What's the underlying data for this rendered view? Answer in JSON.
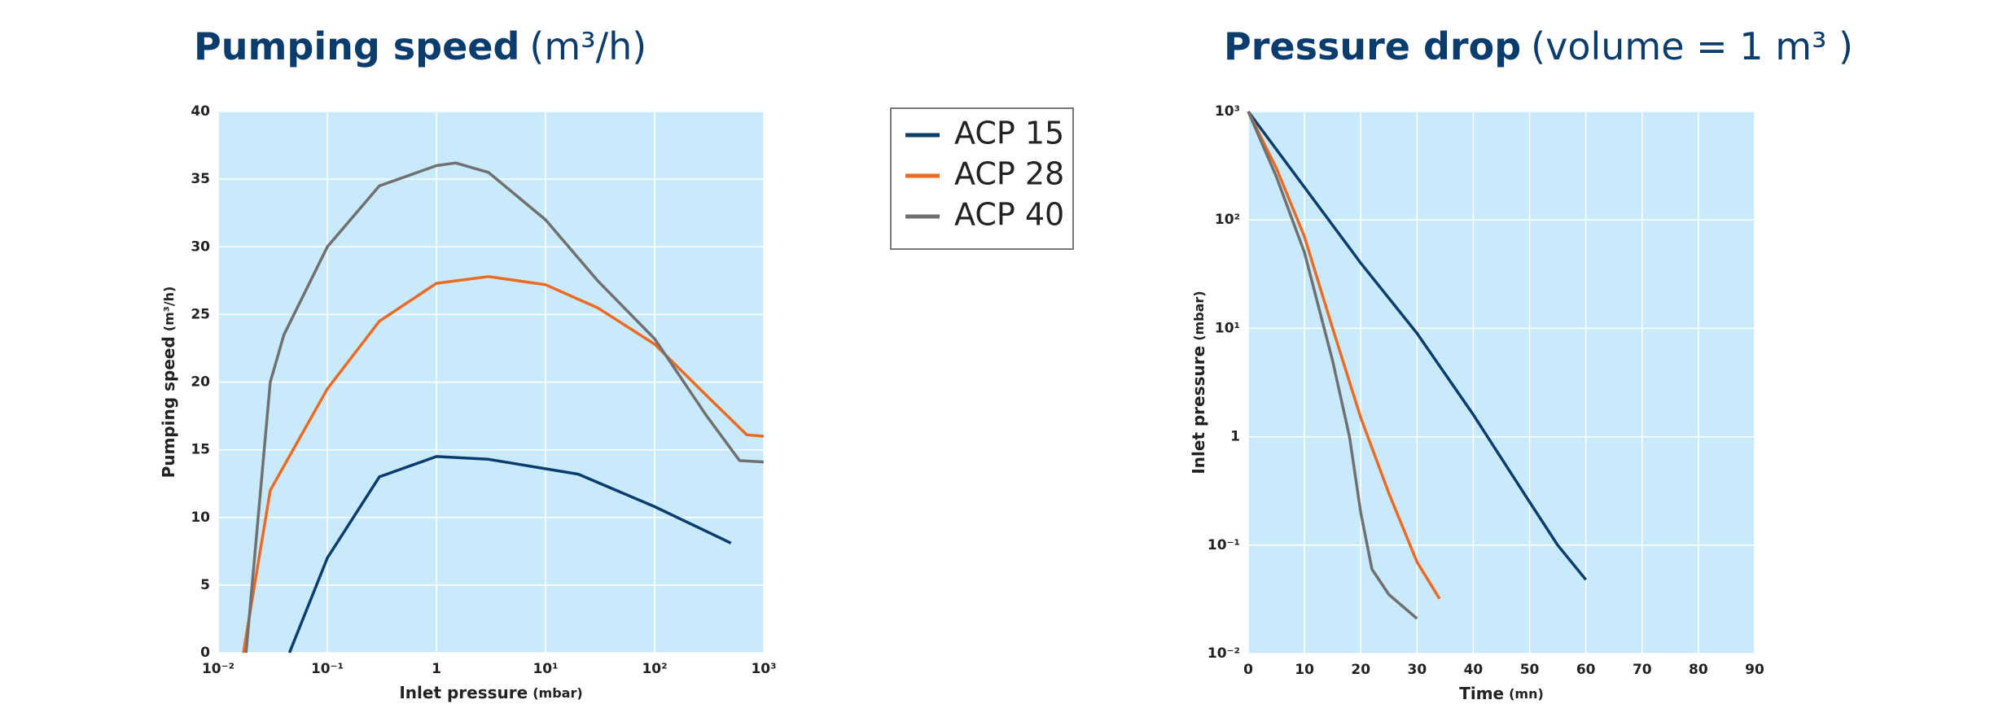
{
  "chart_data": [
    {
      "type": "line",
      "title": "Pumping speed",
      "title_unit": "(m³/h)",
      "x_label": "Inlet pressure",
      "x_unit": "(mbar)",
      "y_label": "Pumping speed",
      "y_unit": "(m³/h)",
      "xlog": true,
      "xlim": [
        0.01,
        1000
      ],
      "xticks": [
        {
          "value": 0.01,
          "label": "10⁻²"
        },
        {
          "value": 0.1,
          "label": "10⁻¹"
        },
        1,
        {
          "value": 10,
          "label": "10¹"
        },
        {
          "value": 100,
          "label": "10²"
        },
        {
          "value": 1000,
          "label": "10³"
        }
      ],
      "ylim": [
        0,
        40
      ],
      "yticks": [
        0,
        5,
        10,
        15,
        20,
        25,
        30,
        35,
        40
      ],
      "grid": true,
      "legend": "right",
      "series": [
        {
          "name": "ACP 15",
          "color": "#0a3d6e",
          "x": [
            0.045,
            0.1,
            0.3,
            1,
            3,
            20,
            100,
            500
          ],
          "values": [
            0,
            7,
            13,
            14.5,
            14.3,
            13.2,
            10.8,
            8.1
          ]
        },
        {
          "name": "ACP 28",
          "color": "#ee6a22",
          "x": [
            0.017,
            0.03,
            0.1,
            0.3,
            1,
            3,
            10,
            30,
            100,
            300,
            700,
            1000
          ],
          "values": [
            0,
            12,
            19.5,
            24.5,
            27.3,
            27.8,
            27.2,
            25.5,
            22.8,
            19,
            16.1,
            16
          ]
        },
        {
          "name": "ACP 40",
          "color": "#707070",
          "x": [
            0.018,
            0.03,
            0.04,
            0.1,
            0.3,
            1,
            1.5,
            3,
            10,
            30,
            100,
            300,
            600,
            1000
          ],
          "values": [
            0,
            20,
            23.5,
            30,
            34.5,
            36,
            36.2,
            35.5,
            32,
            27.5,
            23.2,
            17.5,
            14.2,
            14.1
          ]
        }
      ]
    },
    {
      "type": "line",
      "title": "Pressure drop",
      "title_unit": "(volume = 1 m³ )",
      "x_label": "Time",
      "x_unit": "(mn)",
      "y_label": "Inlet pressure",
      "y_unit": "(mbar)",
      "ylog": true,
      "xlim": [
        0,
        90
      ],
      "xticks": [
        0,
        10,
        20,
        30,
        40,
        50,
        60,
        70,
        80,
        90
      ],
      "ylim": [
        0.01,
        1000
      ],
      "yticks": [
        {
          "value": 0.01,
          "label": "10⁻²"
        },
        {
          "value": 0.1,
          "label": "10⁻¹"
        },
        1,
        {
          "value": 10,
          "label": "10¹"
        },
        {
          "value": 100,
          "label": "10²"
        },
        {
          "value": 1000,
          "label": "10³"
        }
      ],
      "grid": true,
      "series": [
        {
          "color": "#0a3d6e",
          "x": [
            0,
            10,
            20,
            30,
            40,
            50,
            55,
            60
          ],
          "values": [
            1000,
            200,
            40,
            9,
            1.6,
            0.25,
            0.1,
            0.048
          ]
        },
        {
          "color": "#ee6a22",
          "x": [
            0,
            5,
            10,
            15,
            20,
            25,
            30,
            34
          ],
          "values": [
            1000,
            300,
            70,
            10,
            1.5,
            0.3,
            0.07,
            0.032
          ]
        },
        {
          "color": "#707070",
          "x": [
            0,
            5,
            10,
            15,
            18,
            20,
            22,
            25,
            30
          ],
          "values": [
            1000,
            250,
            50,
            5,
            1,
            0.2,
            0.06,
            0.035,
            0.021
          ]
        }
      ]
    }
  ]
}
